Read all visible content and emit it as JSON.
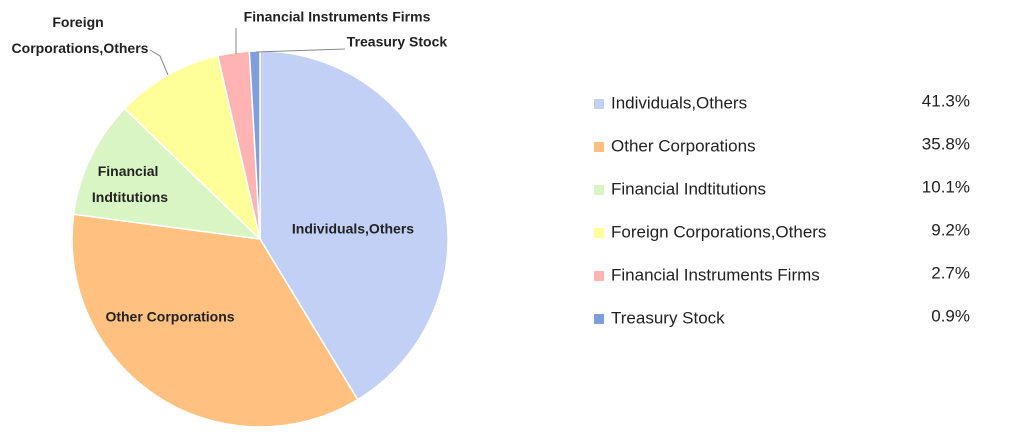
{
  "chart_data": {
    "type": "pie",
    "categories": [
      "Individuals,Others",
      "Other Corporations",
      "Financial Indtitutions",
      "Foreign Corporations,Others",
      "Financial Instruments Firms",
      "Treasury Stock"
    ],
    "values": [
      41.3,
      35.8,
      10.1,
      9.2,
      2.7,
      0.9
    ],
    "value_labels": [
      "41.3%",
      "35.8%",
      "10.1%",
      "9.2%",
      "2.7%",
      "0.9%"
    ],
    "colors": [
      "#c2d0f5",
      "#ffc080",
      "#d9f5c4",
      "#ffff99",
      "#ffb3b3",
      "#7f9ee0"
    ]
  }
}
